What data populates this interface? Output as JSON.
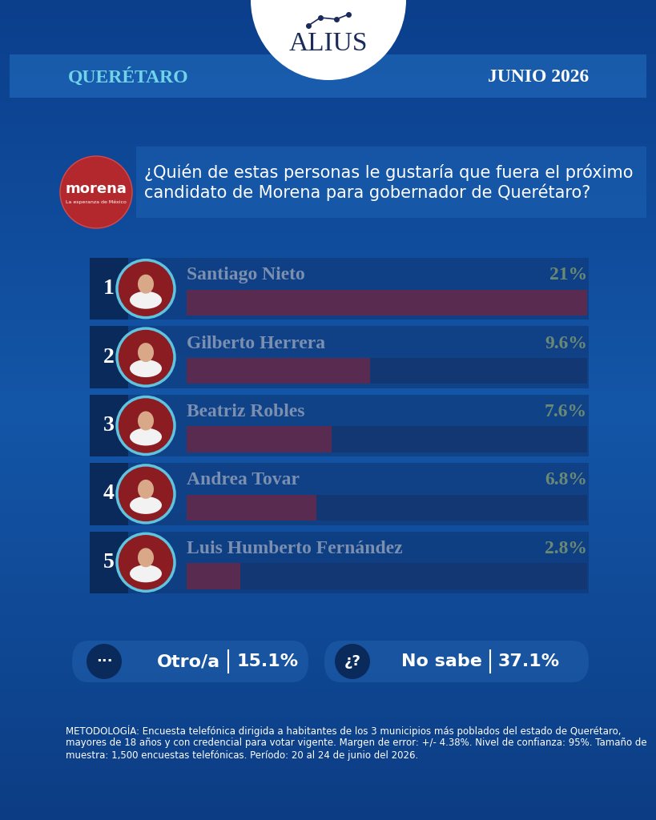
{
  "header": {
    "brand": "ALIUS",
    "region": "QUERÉTARO",
    "date": "JUNIO 2026",
    "logo": {
      "name": "morena",
      "tagline": "La esperanza de México"
    }
  },
  "chart_data": {
    "type": "bar",
    "orientation": "horizontal",
    "title": "¿Quién de estas personas le gustaría que fuera el próximo candidato de Morena para gobernador de Querétaro?",
    "ranks": [
      1,
      2,
      3,
      4,
      5
    ],
    "categories": [
      "Santiago Nieto",
      "Gilberto Herrera",
      "Beatriz Robles",
      "Andrea Tovar",
      "Luis Humberto Fernández"
    ],
    "values": [
      21,
      9.6,
      7.6,
      6.8,
      2.8
    ],
    "value_labels": [
      "21%",
      "9.6%",
      "7.6%",
      "6.8%",
      "2.8%"
    ],
    "color": "#b3222b",
    "xlim": [
      0,
      21
    ],
    "xticks": [],
    "data_labels": true,
    "tick_labels": false,
    "grid": false
  },
  "others": [
    {
      "icon": "···",
      "label": "Otro/a",
      "value": 15.1,
      "value_label": "15.1%"
    },
    {
      "icon": "¿?",
      "label": "No sabe",
      "value": 37.1,
      "value_label": "37.1%"
    }
  ],
  "methodology": "METODOLOGÍA: Encuesta telefónica dirigida a habitantes de los 3 municipios más poblados del estado de Querétaro, mayores de 18 años y con credencial para votar vigente. Margen de error: +/- 4.38%. Nivel de confianza: 95%. Tamaño de muestra: 1,500 encuestas telefónicas. Período: 20 al 24 de junio del 2026."
}
